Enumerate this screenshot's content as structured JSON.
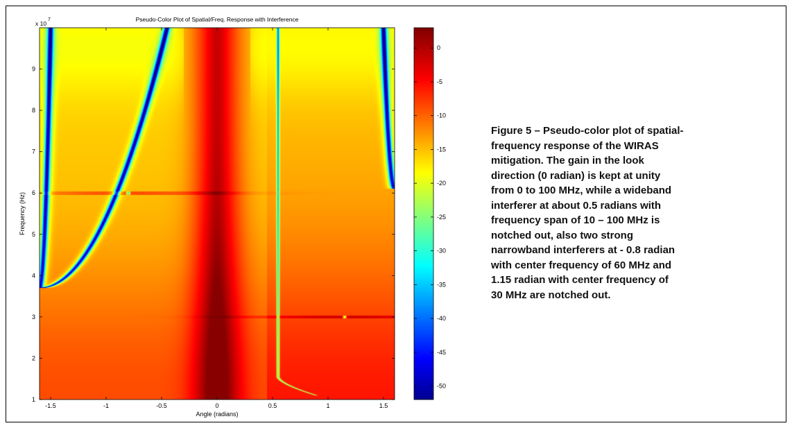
{
  "chart_data": {
    "type": "heatmap",
    "title": "Pseudo-Color Plot of Spatial/Freq. Response with Interference",
    "xlabel": "Angle (radians)",
    "ylabel": "Frequency (Hz)",
    "y_multiplier_label": "x 10",
    "y_multiplier_exponent": "7",
    "xlim": [
      -1.6,
      1.6
    ],
    "ylim": [
      0.1,
      1.0
    ],
    "x_ticks": [
      -1.5,
      -1,
      -0.5,
      0,
      0.5,
      1,
      1.5
    ],
    "x_tick_labels": [
      "-1.5",
      "-1",
      "-0.5",
      "0",
      "0.5",
      "1",
      "1.5"
    ],
    "y_ticks": [
      1,
      2,
      3,
      4,
      5,
      6,
      7,
      8,
      9
    ],
    "y_tick_labels": [
      "1",
      "2",
      "3",
      "4",
      "5",
      "6",
      "7",
      "8",
      "9"
    ],
    "colorbar": {
      "range": [
        -52,
        3
      ],
      "ticks": [
        0,
        -5,
        -10,
        -15,
        -20,
        -25,
        -30,
        -35,
        -40,
        -45,
        -50
      ],
      "tick_labels": [
        "0",
        "-5",
        "-10",
        "-15",
        "-20",
        "-25",
        "-30",
        "-35",
        "-40",
        "-45",
        "-50"
      ],
      "colormap": "jet"
    },
    "look_direction": {
      "angle_rad": 0,
      "gain_db": 0,
      "freq_range_mhz": [
        0,
        100
      ]
    },
    "wideband_interferer": {
      "angle_rad": 0.55,
      "freq_range_mhz": [
        10,
        100
      ]
    },
    "narrowband_interferers": [
      {
        "angle_rad": -0.8,
        "freq_mhz": 60
      },
      {
        "angle_rad": 1.15,
        "freq_mhz": 30
      }
    ],
    "grating_null_arcs": [
      {
        "side": "left",
        "angle_at_top_rad": -1.5,
        "angle_at_bottom_rad": -1.6,
        "bottom_freq_hz": 37000000,
        "notes": "deep null arc"
      },
      {
        "side": "left-inner",
        "angle_at_top_rad": -0.45,
        "angle_at_bottom_rad": -1.6,
        "bottom_freq_hz": 37000000
      },
      {
        "side": "right",
        "angle_at_top_rad": 1.5,
        "angle_at_bottom_rad": 1.6,
        "bottom_freq_hz": 61000000
      }
    ]
  },
  "caption_lines": [
    "Figure 5 – Pseudo-color plot of spatial-",
    "frequency response of the WIRAS",
    "mitigation.  The gain in the look",
    "direction (0 radian) is kept at unity",
    "from 0 to 100 MHz, while a wideband",
    "interferer at about 0.5 radians with",
    "frequency span of 10 – 100 MHz is",
    "notched out, also two strong",
    "narrowband interferers at - 0.8 radian",
    "with center frequency of 60 MHz and",
    "1.15 radian with center frequency of",
    "30 MHz are notched out."
  ]
}
